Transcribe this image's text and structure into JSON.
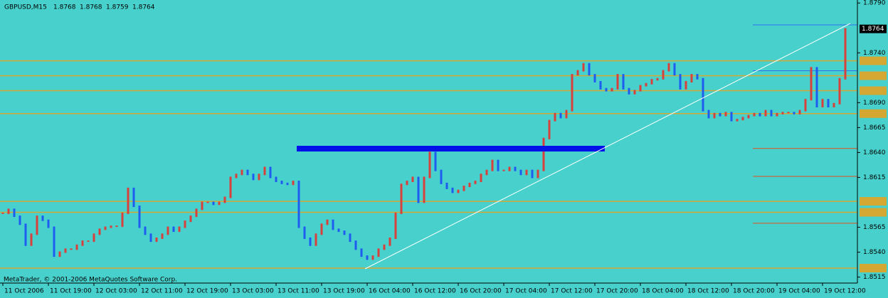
{
  "chart_data": {
    "type": "ohlc",
    "symbol": "GBPUSD,M15",
    "header_ohlc": [
      1.8768,
      1.8768,
      1.8759,
      1.8764
    ],
    "footer": "MetaTrader, © 2001-2006 MetaQuotes Software Corp.",
    "last_price": 1.8764,
    "up_color": "#d8403c",
    "down_color": "#1e5cf0",
    "categories": [
      "11 Oct 2006",
      null,
      null,
      null,
      null,
      null,
      null,
      null,
      "11 Oct 19:00",
      null,
      null,
      null,
      null,
      null,
      null,
      null,
      "12 Oct 03:00",
      null,
      null,
      null,
      null,
      null,
      null,
      null,
      "12 Oct 11:00",
      null,
      null,
      null,
      null,
      null,
      null,
      null,
      "12 Oct 19:00",
      null,
      null,
      null,
      null,
      null,
      null,
      null,
      "13 Oct 03:00",
      null,
      null,
      null,
      null,
      null,
      null,
      null,
      "13 Oct 11:00",
      null,
      null,
      null,
      null,
      null,
      null,
      null,
      "13 Oct 19:00",
      null,
      null,
      null,
      null,
      null,
      null,
      null,
      "16 Oct 04:00",
      null,
      null,
      null,
      null,
      null,
      null,
      null,
      "16 Oct 12:00",
      null,
      null,
      null,
      null,
      null,
      null,
      null,
      "16 Oct 20:00",
      null,
      null,
      null,
      null,
      null,
      null,
      null,
      "17 Oct 04:00",
      null,
      null,
      null,
      null,
      null,
      null,
      null,
      "17 Oct 12:00",
      null,
      null,
      null,
      null,
      null,
      null,
      null,
      "17 Oct 20:00",
      null,
      null,
      null,
      null,
      null,
      null,
      null,
      "18 Oct 04:00",
      null,
      null,
      null,
      null,
      null,
      null,
      null,
      "18 Oct 12:00",
      null,
      null,
      null,
      null,
      null,
      null,
      null,
      "18 Oct 20:00",
      null,
      null,
      null,
      null,
      null,
      null,
      null,
      "19 Oct 04:00",
      null,
      null,
      null,
      null,
      null,
      null,
      null,
      "19 Oct 12:00",
      null,
      null,
      null,
      null
    ],
    "values": [
      1.8579,
      1.8583,
      1.8576,
      1.8568,
      1.8547,
      1.8558,
      1.8576,
      1.8572,
      1.8565,
      1.8536,
      1.854,
      1.8543,
      1.8543,
      1.8547,
      1.8551,
      1.8551,
      1.8558,
      1.8563,
      1.8565,
      1.8566,
      1.8566,
      1.8579,
      1.8604,
      1.8586,
      1.8565,
      1.8558,
      1.8551,
      1.8554,
      1.8558,
      1.8565,
      1.8561,
      1.8565,
      1.8571,
      1.8576,
      1.8583,
      1.859,
      1.859,
      1.8588,
      1.859,
      1.8595,
      1.8615,
      1.8618,
      1.8622,
      1.8618,
      1.8613,
      1.8618,
      1.8625,
      1.8615,
      1.8611,
      1.8609,
      1.8608,
      1.8611,
      1.8565,
      1.8554,
      1.8547,
      1.8558,
      1.8568,
      1.8572,
      1.8563,
      1.8561,
      1.8558,
      1.8551,
      1.8543,
      1.8536,
      1.8533,
      1.8536,
      1.8543,
      1.8547,
      1.8554,
      1.8579,
      1.8608,
      1.8611,
      1.8615,
      1.859,
      1.8615,
      1.864,
      1.8622,
      1.8609,
      1.8604,
      1.86,
      1.8602,
      1.8606,
      1.8609,
      1.8611,
      1.8618,
      1.8622,
      1.8632,
      1.8622,
      1.8622,
      1.8625,
      1.8622,
      1.8618,
      1.8622,
      1.8615,
      1.8622,
      1.8654,
      1.8672,
      1.8679,
      1.8675,
      1.8682,
      1.8718,
      1.8722,
      1.8729,
      1.8718,
      1.8711,
      1.8704,
      1.8702,
      1.8704,
      1.8718,
      1.8704,
      1.8699,
      1.8702,
      1.8707,
      1.8709,
      1.8713,
      1.8714,
      1.8722,
      1.8729,
      1.8718,
      1.8704,
      1.8711,
      1.8718,
      1.8714,
      1.8682,
      1.8675,
      1.8679,
      1.8677,
      1.868,
      1.8672,
      1.8673,
      1.8675,
      1.8677,
      1.8679,
      1.8677,
      1.8682,
      1.8677,
      1.8679,
      1.868,
      1.868,
      1.8679,
      1.8682,
      1.8693,
      1.8725,
      1.8686,
      1.8693,
      1.8686,
      1.8689,
      1.8714,
      1.8764
    ],
    "ylim": [
      1.8509,
      1.8793
    ],
    "yticks": [
      1.8515,
      {
        "value": 1.854,
        "label": "1.8540"
      },
      1.8565,
      1.8615,
      {
        "value": 1.864,
        "label": "1.8640"
      },
      1.8665,
      {
        "value": 1.869,
        "label": "1.8690"
      },
      {
        "value": 1.874,
        "label": "1.8740"
      },
      {
        "value": 1.879,
        "label": "1.8790"
      }
    ],
    "levels": {
      "color": "#d4a832",
      "values": [
        1.8732,
        1.8717,
        1.8702,
        1.8679,
        1.8591,
        1.858,
        1.8524
      ]
    },
    "right_levels": [
      {
        "color": "#e05020",
        "values": [
          1.8644,
          1.8616,
          1.8569
        ]
      },
      {
        "color": "#2f6ef0",
        "values": [
          1.8768,
          1.8722
        ]
      }
    ]
  }
}
